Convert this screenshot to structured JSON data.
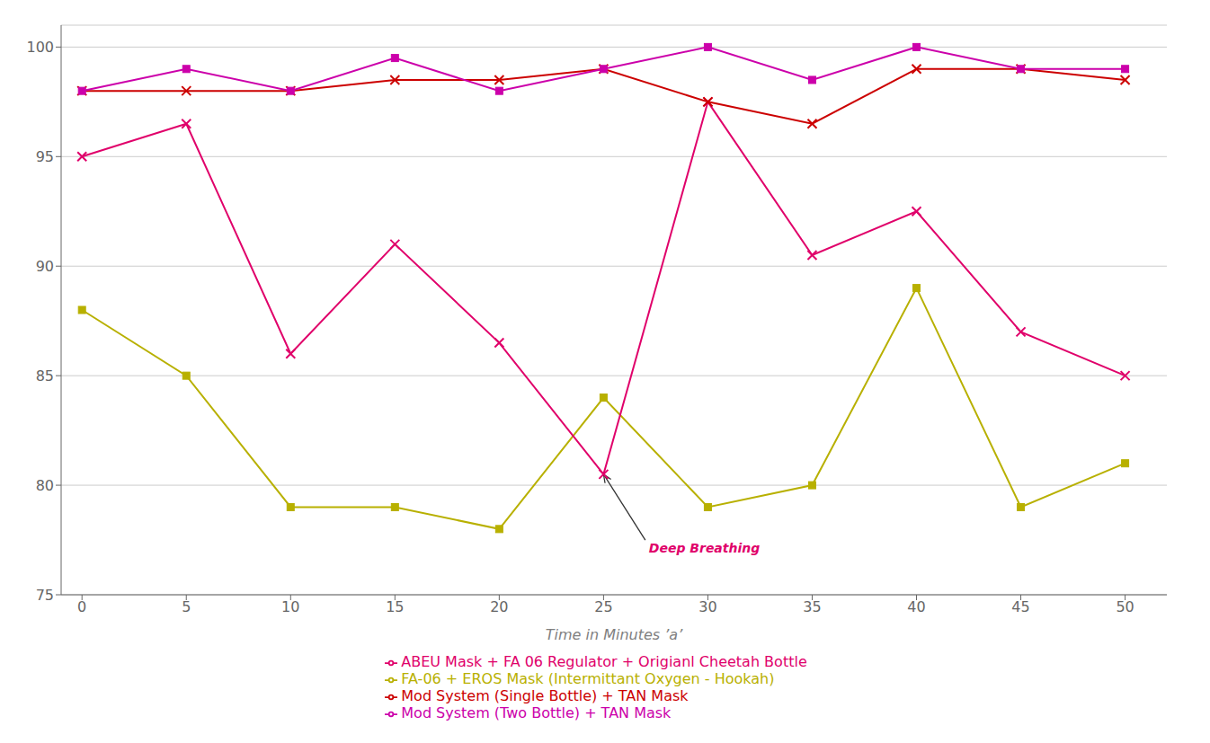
{
  "chart_data": {
    "type": "line",
    "x_label": "Time in Minutes ’a’",
    "x": [
      0,
      5,
      10,
      15,
      20,
      25,
      30,
      35,
      40,
      45,
      50
    ],
    "xlim": [
      -1,
      52
    ],
    "ylim": [
      75,
      101
    ],
    "xticks": [
      0,
      5,
      10,
      15,
      20,
      25,
      30,
      35,
      40,
      45,
      50
    ],
    "yticks": [
      75,
      80,
      85,
      90,
      95,
      100
    ],
    "grid": true,
    "legend": "bottom",
    "series": [
      {
        "name": "FA-06 + EROS Mask (Intermittant Oxygen - Hookah)",
        "color": "#b8b000",
        "marker": "square",
        "values": [
          88,
          85,
          79,
          79,
          78,
          84,
          79,
          80,
          89,
          79,
          81
        ]
      },
      {
        "name": "ABEU Mask + FA 06 Regulator + Origianl Cheetah Bottle",
        "color": "#e0006a",
        "marker": "x",
        "values": [
          95,
          96.5,
          86,
          91,
          86.5,
          80.5,
          97.5,
          90.5,
          92.5,
          87,
          85
        ]
      },
      {
        "name": "Mod System (Single Bottle) + TAN Mask",
        "color": "#cc0000",
        "marker": "x",
        "values": [
          98,
          98,
          98,
          98.5,
          98.5,
          99,
          97.5,
          96.5,
          99,
          99,
          98.5
        ]
      },
      {
        "name": "Mod System (Two Bottle) + TAN Mask",
        "color": "#cc00aa",
        "marker": "square",
        "values": [
          98,
          99,
          98,
          99.5,
          98,
          99,
          100,
          98.5,
          100,
          99,
          99
        ]
      }
    ],
    "annotations": [
      {
        "text": "Deep Breathing",
        "x": 25,
        "y": 80.5,
        "text_x": 27,
        "text_y": 77.5,
        "color": "#e0006a"
      }
    ]
  }
}
